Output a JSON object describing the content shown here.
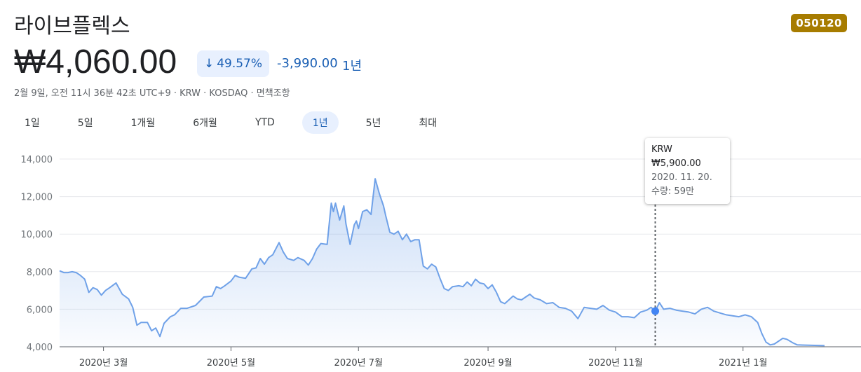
{
  "header": {
    "name": "라이브플렉스",
    "ticker": "050120",
    "price": "₩4,060.00",
    "change_pct": "49.57%",
    "change_abs": "-3,990.00",
    "change_period": "1년",
    "meta": "2월 9일, 오전 11시 36분 42초 UTC+9 · KRW · KOSDAQ · 면책조항"
  },
  "range_tabs": [
    {
      "label": "1일",
      "active": false
    },
    {
      "label": "5일",
      "active": false
    },
    {
      "label": "1개월",
      "active": false
    },
    {
      "label": "6개월",
      "active": false
    },
    {
      "label": "YTD",
      "active": false
    },
    {
      "label": "1년",
      "active": true
    },
    {
      "label": "5년",
      "active": false
    },
    {
      "label": "최대",
      "active": false
    }
  ],
  "tooltip": {
    "price": "KRW ₩5,900.00",
    "date": "2020. 11. 20.",
    "volume": "수량: 59만"
  },
  "colors": {
    "line": "#6fa1e8",
    "down": "#1a5fb4",
    "badge": "#a77c00"
  },
  "chart_data": {
    "type": "area",
    "title": "",
    "xlabel": "",
    "ylabel": "",
    "ylim": [
      4000,
      14000
    ],
    "y_ticks": [
      4000,
      6000,
      8000,
      10000,
      12000,
      14000
    ],
    "y_tick_labels": [
      "4,000",
      "6,000",
      "8,000",
      "10,000",
      "12,000",
      "14,000"
    ],
    "x_range": [
      "2020-02-09",
      "2021-02-09"
    ],
    "x_ticks": [
      {
        "date": "2020-03-01",
        "label": "2020년 3월"
      },
      {
        "date": "2020-05-01",
        "label": "2020년 5월"
      },
      {
        "date": "2020-07-01",
        "label": "2020년 7월"
      },
      {
        "date": "2020-09-01",
        "label": "2020년 9월"
      },
      {
        "date": "2020-11-01",
        "label": "2020년 11월"
      },
      {
        "date": "2021-01-01",
        "label": "2021년 1월"
      }
    ],
    "grid": true,
    "highlight": {
      "date": "2020-11-20",
      "value": 5900
    },
    "series": [
      {
        "points": [
          [
            "2020-02-09",
            8050
          ],
          [
            "2020-02-11",
            7950
          ],
          [
            "2020-02-13",
            7950
          ],
          [
            "2020-02-15",
            8000
          ],
          [
            "2020-02-17",
            7950
          ],
          [
            "2020-02-19",
            7800
          ],
          [
            "2020-02-21",
            7600
          ],
          [
            "2020-02-23",
            6900
          ],
          [
            "2020-02-25",
            7150
          ],
          [
            "2020-02-27",
            7050
          ],
          [
            "2020-02-29",
            6750
          ],
          [
            "2020-03-02",
            7000
          ],
          [
            "2020-03-04",
            7150
          ],
          [
            "2020-03-07",
            7400
          ],
          [
            "2020-03-10",
            6800
          ],
          [
            "2020-03-13",
            6550
          ],
          [
            "2020-03-15",
            6100
          ],
          [
            "2020-03-17",
            5150
          ],
          [
            "2020-03-19",
            5300
          ],
          [
            "2020-03-22",
            5300
          ],
          [
            "2020-03-24",
            4850
          ],
          [
            "2020-03-26",
            5000
          ],
          [
            "2020-03-28",
            4550
          ],
          [
            "2020-03-30",
            5250
          ],
          [
            "2020-04-02",
            5600
          ],
          [
            "2020-04-04",
            5700
          ],
          [
            "2020-04-07",
            6050
          ],
          [
            "2020-04-10",
            6050
          ],
          [
            "2020-04-14",
            6200
          ],
          [
            "2020-04-18",
            6650
          ],
          [
            "2020-04-22",
            6700
          ],
          [
            "2020-04-24",
            7200
          ],
          [
            "2020-04-26",
            7100
          ],
          [
            "2020-04-28",
            7250
          ],
          [
            "2020-05-01",
            7500
          ],
          [
            "2020-05-03",
            7800
          ],
          [
            "2020-05-05",
            7700
          ],
          [
            "2020-05-08",
            7650
          ],
          [
            "2020-05-11",
            8150
          ],
          [
            "2020-05-13",
            8200
          ],
          [
            "2020-05-15",
            8700
          ],
          [
            "2020-05-17",
            8400
          ],
          [
            "2020-05-19",
            8750
          ],
          [
            "2020-05-21",
            8900
          ],
          [
            "2020-05-24",
            9550
          ],
          [
            "2020-05-26",
            9050
          ],
          [
            "2020-05-28",
            8700
          ],
          [
            "2020-05-31",
            8600
          ],
          [
            "2020-06-02",
            8750
          ],
          [
            "2020-06-05",
            8600
          ],
          [
            "2020-06-07",
            8350
          ],
          [
            "2020-06-09",
            8700
          ],
          [
            "2020-06-11",
            9200
          ],
          [
            "2020-06-13",
            9500
          ],
          [
            "2020-06-16",
            9450
          ],
          [
            "2020-06-18",
            11650
          ],
          [
            "2020-06-19",
            11200
          ],
          [
            "2020-06-20",
            11650
          ],
          [
            "2020-06-22",
            10750
          ],
          [
            "2020-06-24",
            11500
          ],
          [
            "2020-06-25",
            10550
          ],
          [
            "2020-06-27",
            9450
          ],
          [
            "2020-06-29",
            10500
          ],
          [
            "2020-06-30",
            10700
          ],
          [
            "2020-07-01",
            10300
          ],
          [
            "2020-07-03",
            11200
          ],
          [
            "2020-07-05",
            11300
          ],
          [
            "2020-07-07",
            11050
          ],
          [
            "2020-07-09",
            12950
          ],
          [
            "2020-07-11",
            12150
          ],
          [
            "2020-07-13",
            11500
          ],
          [
            "2020-07-14",
            11000
          ],
          [
            "2020-07-16",
            10100
          ],
          [
            "2020-07-18",
            10000
          ],
          [
            "2020-07-20",
            10150
          ],
          [
            "2020-07-22",
            9700
          ],
          [
            "2020-07-24",
            10000
          ],
          [
            "2020-07-26",
            9600
          ],
          [
            "2020-07-28",
            9700
          ],
          [
            "2020-07-30",
            9700
          ],
          [
            "2020-08-01",
            8300
          ],
          [
            "2020-08-03",
            8150
          ],
          [
            "2020-08-05",
            8400
          ],
          [
            "2020-08-07",
            8250
          ],
          [
            "2020-08-09",
            7650
          ],
          [
            "2020-08-11",
            7100
          ],
          [
            "2020-08-13",
            7000
          ],
          [
            "2020-08-15",
            7200
          ],
          [
            "2020-08-18",
            7250
          ],
          [
            "2020-08-20",
            7200
          ],
          [
            "2020-08-22",
            7450
          ],
          [
            "2020-08-24",
            7250
          ],
          [
            "2020-08-26",
            7600
          ],
          [
            "2020-08-28",
            7400
          ],
          [
            "2020-08-30",
            7350
          ],
          [
            "2020-09-01",
            7100
          ],
          [
            "2020-09-03",
            7300
          ],
          [
            "2020-09-05",
            6900
          ],
          [
            "2020-09-07",
            6400
          ],
          [
            "2020-09-09",
            6300
          ],
          [
            "2020-09-11",
            6500
          ],
          [
            "2020-09-13",
            6700
          ],
          [
            "2020-09-15",
            6550
          ],
          [
            "2020-09-17",
            6500
          ],
          [
            "2020-09-19",
            6650
          ],
          [
            "2020-09-21",
            6800
          ],
          [
            "2020-09-23",
            6600
          ],
          [
            "2020-09-26",
            6500
          ],
          [
            "2020-09-29",
            6300
          ],
          [
            "2020-10-02",
            6350
          ],
          [
            "2020-10-05",
            6100
          ],
          [
            "2020-10-08",
            6050
          ],
          [
            "2020-10-11",
            5900
          ],
          [
            "2020-10-14",
            5500
          ],
          [
            "2020-10-17",
            6100
          ],
          [
            "2020-10-20",
            6050
          ],
          [
            "2020-10-23",
            6000
          ],
          [
            "2020-10-26",
            6200
          ],
          [
            "2020-10-29",
            5950
          ],
          [
            "2020-11-01",
            5850
          ],
          [
            "2020-11-04",
            5600
          ],
          [
            "2020-11-07",
            5600
          ],
          [
            "2020-11-10",
            5550
          ],
          [
            "2020-11-13",
            5850
          ],
          [
            "2020-11-16",
            5950
          ],
          [
            "2020-11-18",
            6100
          ],
          [
            "2020-11-20",
            5900
          ],
          [
            "2020-11-22",
            6350
          ],
          [
            "2020-11-24",
            6000
          ],
          [
            "2020-11-27",
            6050
          ],
          [
            "2020-11-30",
            5950
          ],
          [
            "2020-12-03",
            5900
          ],
          [
            "2020-12-06",
            5850
          ],
          [
            "2020-12-09",
            5750
          ],
          [
            "2020-12-12",
            6000
          ],
          [
            "2020-12-15",
            6100
          ],
          [
            "2020-12-18",
            5900
          ],
          [
            "2020-12-21",
            5800
          ],
          [
            "2020-12-24",
            5700
          ],
          [
            "2020-12-27",
            5650
          ],
          [
            "2020-12-30",
            5600
          ],
          [
            "2021-01-02",
            5700
          ],
          [
            "2021-01-05",
            5600
          ],
          [
            "2021-01-08",
            5300
          ],
          [
            "2021-01-10",
            4700
          ],
          [
            "2021-01-12",
            4250
          ],
          [
            "2021-01-14",
            4100
          ],
          [
            "2021-01-16",
            4150
          ],
          [
            "2021-01-18",
            4300
          ],
          [
            "2021-01-20",
            4450
          ],
          [
            "2021-01-22",
            4400
          ],
          [
            "2021-01-25",
            4200
          ],
          [
            "2021-01-27",
            4100
          ],
          [
            "2021-02-09",
            4060
          ]
        ]
      }
    ]
  }
}
